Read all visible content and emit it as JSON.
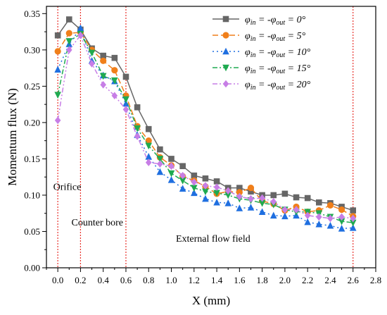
{
  "chart_data": {
    "type": "line",
    "xlabel": "X (mm)",
    "ylabel": "Momentum flux (N)",
    "xlim": [
      -0.1,
      2.8
    ],
    "ylim": [
      0.0,
      0.36
    ],
    "xticks": [
      "0.0",
      "0.2",
      "0.4",
      "0.6",
      "0.8",
      "1.0",
      "1.2",
      "1.4",
      "1.6",
      "1.8",
      "2.0",
      "2.2",
      "2.4",
      "2.6",
      "2.8"
    ],
    "yticks": [
      "0.00",
      "0.05",
      "0.10",
      "0.15",
      "0.20",
      "0.25",
      "0.30",
      "0.35"
    ],
    "vlines": [
      0.0,
      0.2,
      0.6,
      2.6
    ],
    "annotations": [
      {
        "text": "Orifice",
        "x": -0.04,
        "y": 0.107
      },
      {
        "text": "Counter bore",
        "x": 0.12,
        "y": 0.058
      },
      {
        "text": "External flow field",
        "x": 1.04,
        "y": 0.036
      }
    ],
    "legend_position": "top-right",
    "x": [
      0.0,
      0.1,
      0.2,
      0.3,
      0.4,
      0.5,
      0.6,
      0.7,
      0.8,
      0.9,
      1.0,
      1.1,
      1.2,
      1.3,
      1.4,
      1.5,
      1.6,
      1.7,
      1.8,
      1.9,
      2.0,
      2.1,
      2.2,
      2.3,
      2.4,
      2.5,
      2.6
    ],
    "series": [
      {
        "name": "φin = -φout = 0°",
        "color": "#666666",
        "marker": "square",
        "dash": "",
        "values": [
          0.32,
          0.342,
          0.328,
          0.302,
          0.292,
          0.289,
          0.263,
          0.221,
          0.191,
          0.163,
          0.15,
          0.14,
          0.127,
          0.123,
          0.119,
          0.11,
          0.11,
          0.105,
          0.1,
          0.1,
          0.102,
          0.097,
          0.096,
          0.09,
          0.089,
          0.084,
          0.079
        ]
      },
      {
        "name": "φin = -φout = 5°",
        "color": "#f07f1a",
        "marker": "circle",
        "dash": "8,4",
        "values": [
          0.298,
          0.323,
          0.324,
          0.3,
          0.285,
          0.272,
          0.237,
          0.195,
          0.175,
          0.152,
          0.141,
          0.126,
          0.12,
          0.112,
          0.102,
          0.105,
          0.104,
          0.11,
          0.092,
          0.088,
          0.079,
          0.084,
          0.077,
          0.079,
          0.086,
          0.08,
          0.071
        ]
      },
      {
        "name": "φin = -φout = 10°",
        "color": "#1f6fe0",
        "marker": "triangle-up",
        "dash": "2,4",
        "values": [
          0.273,
          0.308,
          0.33,
          0.285,
          0.265,
          0.257,
          0.226,
          0.183,
          0.153,
          0.132,
          0.121,
          0.109,
          0.103,
          0.095,
          0.09,
          0.089,
          0.082,
          0.083,
          0.077,
          0.072,
          0.071,
          0.072,
          0.063,
          0.06,
          0.058,
          0.054,
          0.055
        ]
      },
      {
        "name": "φin = -φout = 15°",
        "color": "#1faa50",
        "marker": "triangle-down",
        "dash": "7,3,2,3",
        "values": [
          0.238,
          0.312,
          0.322,
          0.296,
          0.264,
          0.258,
          0.232,
          0.192,
          0.168,
          0.15,
          0.13,
          0.12,
          0.11,
          0.105,
          0.103,
          0.1,
          0.095,
          0.093,
          0.089,
          0.087,
          0.08,
          0.077,
          0.077,
          0.075,
          0.07,
          0.064,
          0.062
        ]
      },
      {
        "name": "φin = -φout = 20°",
        "color": "#c77ee6",
        "marker": "diamond",
        "dash": "7,3,2,3,2,3",
        "values": [
          0.203,
          0.3,
          0.32,
          0.281,
          0.252,
          0.237,
          0.218,
          0.181,
          0.145,
          0.143,
          0.14,
          0.127,
          0.118,
          0.113,
          0.111,
          0.106,
          0.098,
          0.095,
          0.096,
          0.091,
          0.08,
          0.08,
          0.072,
          0.07,
          0.068,
          0.07,
          0.068
        ]
      }
    ]
  },
  "legend": {
    "items": [
      {
        "sym": "φ",
        "sub1": "in",
        "mid": " = -",
        "sym2": "φ",
        "sub2": "out",
        "tail": " = 0°"
      },
      {
        "sym": "φ",
        "sub1": "in",
        "mid": " = -",
        "sym2": "φ",
        "sub2": "out",
        "tail": " = 5°"
      },
      {
        "sym": "φ",
        "sub1": "in",
        "mid": " = -",
        "sym2": "φ",
        "sub2": "out",
        "tail": " = 10°"
      },
      {
        "sym": "φ",
        "sub1": "in",
        "mid": " = -",
        "sym2": "φ",
        "sub2": "out",
        "tail": " = 15°"
      },
      {
        "sym": "φ",
        "sub1": "in",
        "mid": " = -",
        "sym2": "φ",
        "sub2": "out",
        "tail": " = 20°"
      }
    ]
  }
}
